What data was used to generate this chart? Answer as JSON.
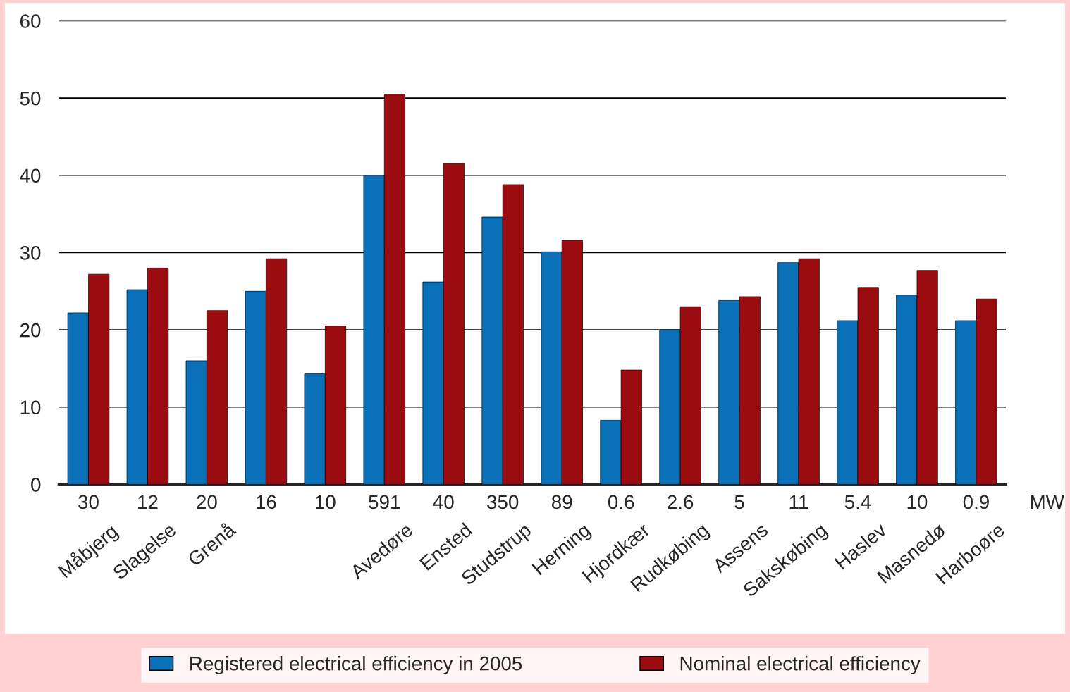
{
  "chart_data": {
    "type": "bar",
    "categories": [
      "Måbjerg",
      "Slagelse",
      "Grenå",
      null,
      null,
      "Avedøre",
      "Ensted",
      "Studstrup",
      "Herning",
      "Hjordkær",
      "Rudkøbing",
      "Assens",
      "Sakskøbing",
      "Haslev",
      "Masnedø",
      "Harboøre"
    ],
    "series": [
      {
        "name": "Registered electrical efficiency in 2005",
        "color": "#0a70b8",
        "values": [
          22.2,
          25.2,
          16,
          25,
          14.3,
          40,
          26.2,
          34.6,
          30.1,
          8.3,
          20,
          23.8,
          28.7,
          21.2,
          24.5,
          21.2
        ]
      },
      {
        "name": "Nominal electrical efficiency",
        "color": "#9b0c10",
        "values": [
          27.2,
          28,
          22.5,
          29.2,
          20.5,
          50.5,
          41.5,
          38.8,
          31.6,
          14.8,
          23,
          24.3,
          29.2,
          25.5,
          27.7,
          24
        ]
      }
    ],
    "annotations": [
      "30",
      "12",
      "20",
      "16",
      "10",
      "591",
      "40",
      "350",
      "89",
      "0.6",
      "2.6",
      "5",
      "11",
      "5.4",
      "10",
      "0.9",
      "MW"
    ],
    "ylim": [
      0,
      60
    ],
    "yticks": [
      0,
      10,
      20,
      30,
      40,
      50,
      60
    ],
    "grid": "y",
    "legend": "bottom"
  }
}
